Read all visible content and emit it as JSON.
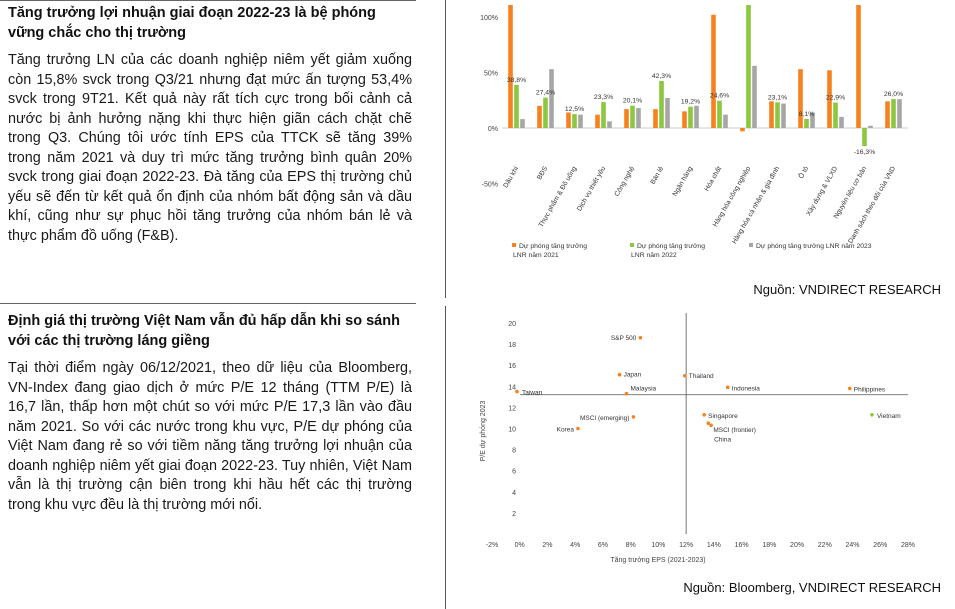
{
  "section1": {
    "title": "Tăng trưởng lợi nhuận giai đoạn 2022-23 là bệ phóng vững chắc cho thị trường",
    "body": "Tăng trưởng LN của các doanh nghiệp niêm yết giảm xuống còn 15,8% svck trong Q3/21 nhưng đạt mức ấn tượng 53,4% svck trong 9T21. Kết quả này rất tích cực trong bối cảnh cả nước bị ảnh hưởng nặng khi thực hiện giãn cách chặt chẽ trong Q3. Chúng tôi ước tính EPS của TTCK sẽ tăng 39% trong năm 2021 và duy trì mức tăng trưởng bình quân 20% svck trong giai đoạn 2022-23. Đà tăng của EPS thị trường chủ yếu sẽ đến từ kết quả ổn định của nhóm bất động sản và dầu khí, cũng như sự phục hồi tăng trưởng của nhóm bán lẻ và thực phẩm đồ uống (F&B).",
    "source": "Nguồn: VNDIRECT RESEARCH"
  },
  "section2": {
    "title": "Định giá thị trường Việt Nam vẫn đủ hấp dẫn khi so sánh với các thị trường láng giềng",
    "body": "Tại thời điểm ngày 06/12/2021, theo dữ liệu của Bloomberg, VN-Index đang giao dịch ở mức P/E 12 tháng (TTM P/E) là 16,7 lần, thấp hơn một chút so với mức P/E 17,3 lần vào đầu năm 2021. So với các nước trong khu vực, P/E dự phóng của Việt Nam đang rẻ so với tiềm năng tăng trưởng lợi nhuận của doanh nghiệp niêm yết giai đoạn 2022-23. Tuy nhiên, Việt Nam vẫn là thị trường cận biên trong khi hầu hết các thị trường trong khu vực đều là thị trường mới nổi.",
    "source": "Nguồn: Bloomberg, VNDIRECT RESEARCH"
  },
  "chart_data": [
    {
      "type": "bar",
      "categories": [
        "Dầu khí",
        "BĐS",
        "Thực phẩm & Đồ uống",
        "Dịch vụ thiết yếu",
        "Công nghệ",
        "Bán lẻ",
        "Ngân hàng",
        "Hóa chất",
        "Hàng hóa công nghiệp",
        "Hàng hóa cá nhân & gia đình",
        "Ô tô",
        "Xây dựng & VLXD",
        "Nguyên liệu cơ bản",
        "Danh sách theo dõi của VND"
      ],
      "series": [
        {
          "name": "Dự phóng tăng trưởng LNR năm 2021",
          "color": "#F5821F",
          "values": [
            135,
            20,
            14,
            12,
            17,
            17,
            15,
            102,
            -3,
            24,
            53,
            52,
            165,
            24
          ]
        },
        {
          "name": "Dự phóng tăng trưởng LNR năm 2022",
          "color": "#8DC63F",
          "values": [
            38.8,
            27.4,
            12.5,
            23.3,
            20.1,
            42.3,
            19.2,
            24.6,
            134.9,
            23.1,
            8.1,
            22.9,
            -16.3,
            26.0
          ]
        },
        {
          "name": "Dự phóng tăng trưởng LNR năm 2023",
          "color": "#A6A6A6",
          "values": [
            8,
            53,
            12,
            6,
            18,
            27,
            20,
            12,
            56,
            22,
            14,
            10,
            2,
            26
          ]
        }
      ],
      "data_labels": [
        "38,8%",
        "27,4%",
        "12,5%",
        "23,3%",
        "20,1%",
        "42,3%",
        "19,2%",
        "24,6%",
        "134,9%",
        "23,1%",
        "8,1%",
        "22,9%",
        "-16,3%",
        "26,0%"
      ],
      "yticks": [
        "200%",
        "150%",
        "100%",
        "50%",
        "0%",
        "-50%"
      ],
      "ylim": [
        -50,
        200
      ],
      "legend": [
        "Dự phóng tăng trưởng LNR năm 2021",
        "Dự phóng tăng trưởng LNR năm 2022",
        "Dự phóng tăng trưởng LNR năm 2023"
      ],
      "legend_position": "bottom",
      "grid": false
    },
    {
      "type": "scatter",
      "xlabel": "Tăng trưởng EPS (2021-2023)",
      "ylabel": "P/E dự phóng 2023",
      "xlim": [
        -2,
        28
      ],
      "ylim": [
        0,
        20
      ],
      "xticks": [
        "-2%",
        "0%",
        "2%",
        "4%",
        "6%",
        "8%",
        "10%",
        "12%",
        "14%",
        "16%",
        "18%",
        "20%",
        "22%",
        "24%",
        "26%",
        "28%"
      ],
      "yticks": [
        "20",
        "18",
        "16",
        "14",
        "12",
        "10",
        "8",
        "6",
        "4",
        "2",
        "0"
      ],
      "reference_lines": {
        "x": 12,
        "y": 13.2
      },
      "color": "#F5821F",
      "vietnam_color": "#8DC63F",
      "points": [
        {
          "label": "S&P 500",
          "x": 8.7,
          "y": 18.6
        },
        {
          "label": "Japan",
          "x": 7.2,
          "y": 15.1
        },
        {
          "label": "Thailand",
          "x": 11.9,
          "y": 15.0
        },
        {
          "label": "Malaysia",
          "x": 7.7,
          "y": 13.3
        },
        {
          "label": "Indonesia",
          "x": 15.0,
          "y": 13.9
        },
        {
          "label": "Philippines",
          "x": 23.8,
          "y": 13.8
        },
        {
          "label": "Taiwan",
          "x": -0.2,
          "y": 13.5
        },
        {
          "label": "MSCI (emerging)",
          "x": 8.2,
          "y": 11.1
        },
        {
          "label": "Korea",
          "x": 4.2,
          "y": 10.0
        },
        {
          "label": "Singapore",
          "x": 13.3,
          "y": 11.3
        },
        {
          "label": "MSCI (frontier)",
          "x": 13.6,
          "y": 10.5
        },
        {
          "label": "China",
          "x": 13.8,
          "y": 10.3
        },
        {
          "label": "Vietnam",
          "x": 25.4,
          "y": 11.3
        }
      ]
    }
  ]
}
